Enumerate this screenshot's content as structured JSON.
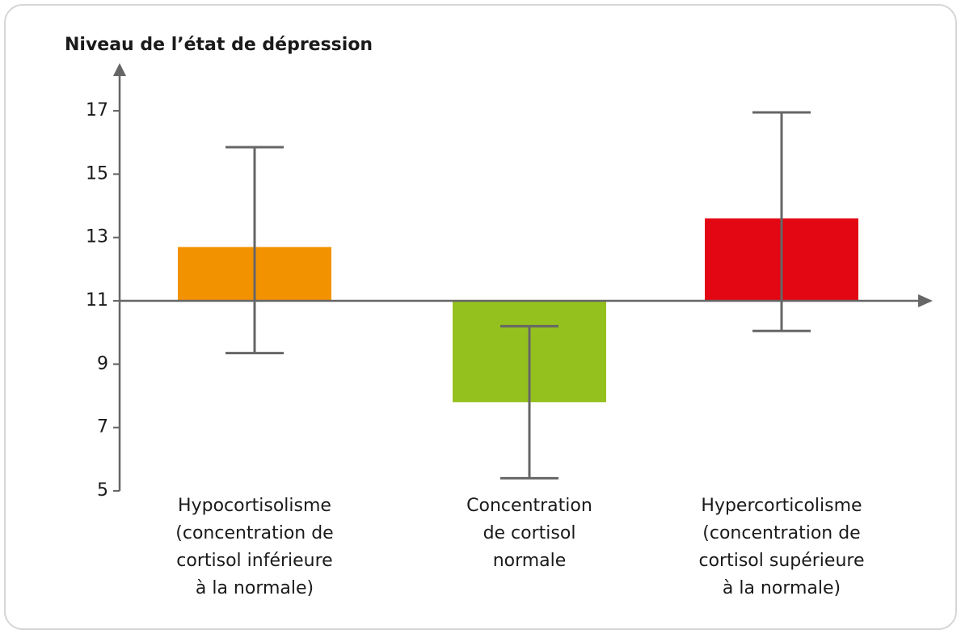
{
  "chart_data": {
    "type": "bar",
    "y_axis_label": "Niveau de l’état de dépression",
    "categories": [
      [
        "Hypocortisolisme",
        "(concentration de",
        "cortisol inférieure",
        "à la normale)"
      ],
      [
        "Concentration",
        "de cortisol",
        "normale"
      ],
      [
        "Hypercorticolisme",
        "(concentration de",
        "cortisol supérieure",
        "à la normale)"
      ]
    ],
    "values": [
      12.7,
      7.8,
      13.6
    ],
    "error_lower": [
      9.35,
      5.4,
      10.05
    ],
    "error_upper": [
      15.85,
      10.2,
      16.95
    ],
    "colors": [
      "#f39200",
      "#95c11f",
      "#e30613"
    ],
    "x_axis_crosses_at": 11,
    "ylim": [
      5,
      17
    ],
    "yticks": [
      5,
      7,
      9,
      11,
      13,
      15,
      17
    ],
    "grid": false
  }
}
